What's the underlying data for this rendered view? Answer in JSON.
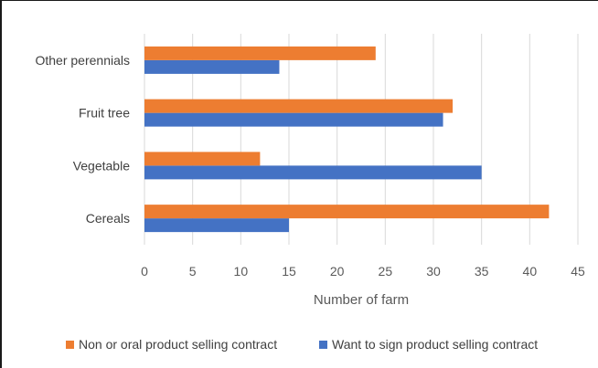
{
  "chart_data": {
    "type": "bar",
    "orientation": "horizontal",
    "title": "",
    "categories": [
      "Cereals",
      "Vegetable",
      "Fruit tree",
      "Other perennials"
    ],
    "series": [
      {
        "name": "Want to sign product selling contract",
        "color": "#4472C4",
        "values": [
          15,
          35,
          31,
          14
        ]
      },
      {
        "name": "Non or oral product selling  contract",
        "color": "#ED7D31",
        "values": [
          42,
          12,
          32,
          24
        ]
      }
    ],
    "xlabel": "Number of farm",
    "ylabel": "",
    "xlim": [
      0,
      45
    ],
    "xticks": [
      0,
      5,
      10,
      15,
      20,
      25,
      30,
      35,
      40,
      45
    ],
    "grid": "vertical",
    "legend_position": "bottom",
    "legend_order": [
      "Non or oral product selling  contract",
      "Want to sign product selling contract"
    ]
  }
}
